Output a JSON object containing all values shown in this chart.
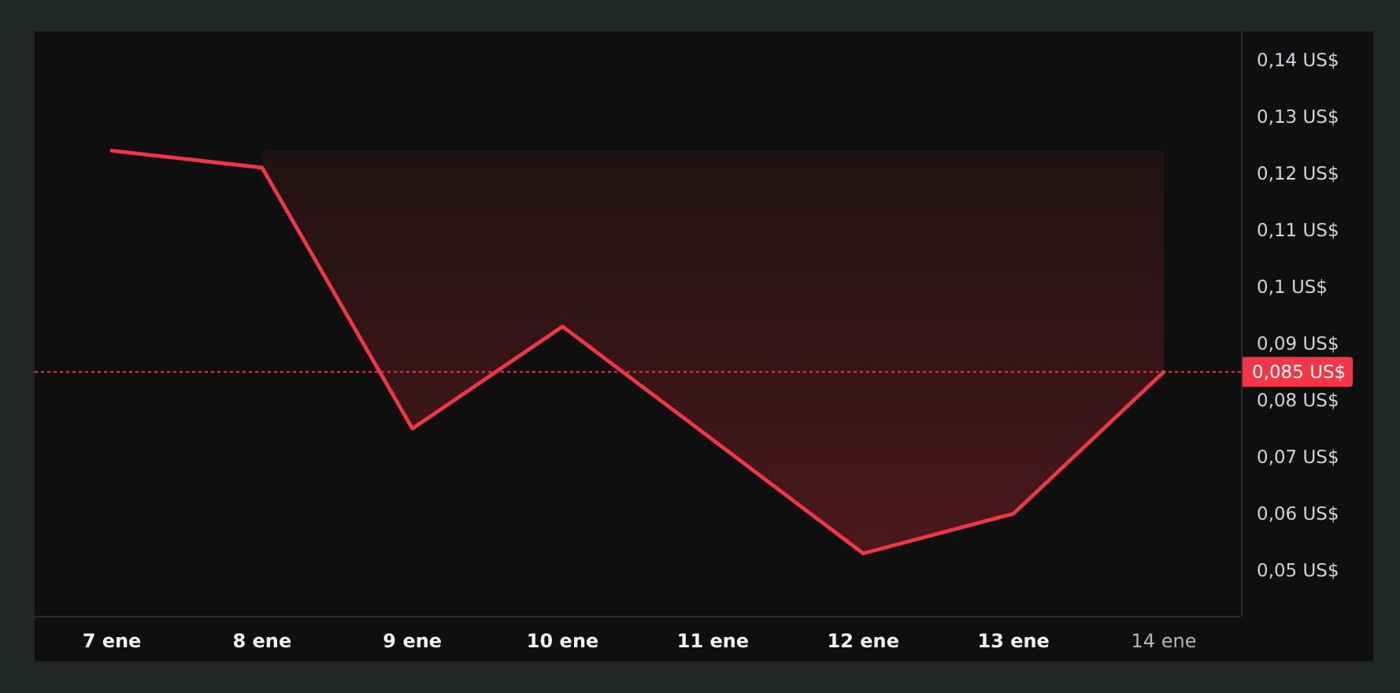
{
  "chart_data": {
    "type": "line",
    "categories": [
      "7 ene",
      "8 ene",
      "9 ene",
      "10 ene",
      "11 ene",
      "12 ene",
      "13 ene",
      "14 ene"
    ],
    "series": [
      {
        "color": "#f23645",
        "values": [
          0.124,
          0.121,
          0.075,
          0.093,
          0.073,
          0.053,
          0.06,
          0.085
        ],
        "lower": [
          null,
          0.121,
          0.075,
          0.093,
          0.073,
          0.053,
          0.06,
          0.085
        ],
        "upper": [
          null,
          0.124,
          0.124,
          0.124,
          0.124,
          0.124,
          0.124,
          0.124
        ]
      }
    ],
    "ylim": [
      0.042,
      0.145
    ],
    "yticks": [
      {
        "value": 0.05,
        "label": "0,05 US$"
      },
      {
        "value": 0.06,
        "label": "0,06 US$"
      },
      {
        "value": 0.07,
        "label": "0,07 US$"
      },
      {
        "value": 0.08,
        "label": "0,08 US$"
      },
      {
        "value": 0.09,
        "label": "0,09 US$"
      },
      {
        "value": 0.1,
        "label": "0,1 US$"
      },
      {
        "value": 0.11,
        "label": "0,11 US$"
      },
      {
        "value": 0.12,
        "label": "0,12 US$"
      },
      {
        "value": 0.13,
        "label": "0,13 US$"
      },
      {
        "value": 0.14,
        "label": "0,14 US$"
      }
    ],
    "ref_lines": [
      {
        "axis": "y",
        "value": 0.085,
        "label": "0,085 US$",
        "color": "#f23645",
        "line_style": "dotted"
      }
    ]
  }
}
